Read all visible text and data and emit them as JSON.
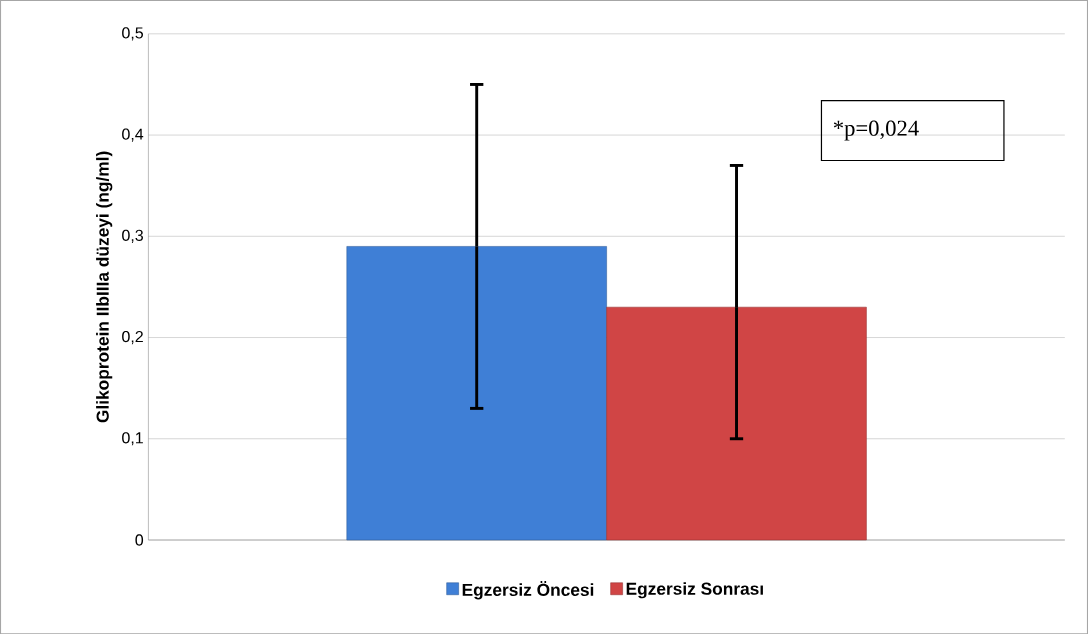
{
  "chart_data": {
    "type": "bar",
    "ylabel": "Glikoprotein IIbIIIa düzeyi (ng/ml)",
    "categories": [
      null
    ],
    "series": [
      {
        "name": "Egzersiz Öncesi",
        "color": "#3f7fd6",
        "values": [
          0.29
        ],
        "errors": [
          [
            0.13,
            0.45
          ]
        ]
      },
      {
        "name": "Egzersiz Sonrası",
        "color": "#d04545",
        "values": [
          0.23
        ],
        "errors": [
          [
            0.1,
            0.37
          ]
        ]
      }
    ],
    "ylim": [
      0,
      0.5
    ],
    "yticks": [
      0,
      {
        "value": 0.1,
        "label": "0,1"
      },
      {
        "value": 0.2,
        "label": "0,2"
      },
      {
        "value": 0.3,
        "label": "0,3"
      },
      {
        "value": 0.4,
        "label": "0,4"
      },
      {
        "value": 0.5,
        "label": "0,5"
      }
    ],
    "grid": "y",
    "legend": "bottom",
    "annotations": [
      "*p=0,024"
    ]
  }
}
